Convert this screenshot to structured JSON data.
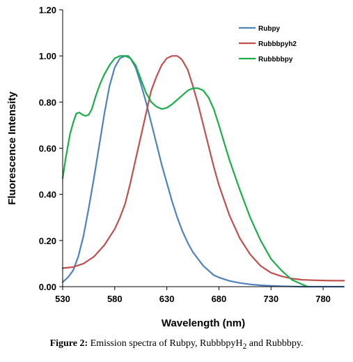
{
  "chart_data": {
    "type": "line",
    "title": "",
    "xlabel": "Wavelength (nm)",
    "ylabel": "Fluorescence Intensity",
    "xlim": [
      530,
      800
    ],
    "ylim": [
      0,
      1.2
    ],
    "xticks": [
      530,
      580,
      630,
      680,
      730,
      780
    ],
    "yticks": [
      0.0,
      0.2,
      0.4,
      0.6,
      0.8,
      1.0,
      1.2
    ],
    "ytick_labels": [
      "0.00",
      "0.20",
      "0.40",
      "0.60",
      "0.80",
      "1.00",
      "1.20"
    ],
    "grid": false,
    "legend_position": "top-right",
    "series": [
      {
        "name": "Rubpy",
        "color": "#4f81bd",
        "x": [
          530,
          535,
          540,
          545,
          550,
          555,
          560,
          565,
          570,
          575,
          580,
          585,
          590,
          593,
          595,
          600,
          605,
          610,
          615,
          620,
          625,
          630,
          635,
          640,
          645,
          650,
          655,
          660,
          665,
          670,
          675,
          680,
          690,
          700,
          710,
          720,
          730,
          740,
          750,
          760,
          770,
          780,
          800
        ],
        "y": [
          0.02,
          0.04,
          0.07,
          0.13,
          0.22,
          0.34,
          0.47,
          0.61,
          0.75,
          0.87,
          0.95,
          0.99,
          1.0,
          1.0,
          0.99,
          0.95,
          0.88,
          0.8,
          0.71,
          0.62,
          0.53,
          0.45,
          0.37,
          0.3,
          0.24,
          0.19,
          0.15,
          0.12,
          0.09,
          0.07,
          0.05,
          0.04,
          0.025,
          0.016,
          0.01,
          0.006,
          0.004,
          0.002,
          0.001,
          0.0,
          0.0,
          0.0,
          0.0
        ]
      },
      {
        "name": "Rubbbpyh2",
        "color": "#c0504d",
        "x": [
          530,
          540,
          550,
          560,
          570,
          580,
          585,
          590,
          595,
          600,
          605,
          610,
          615,
          620,
          625,
          630,
          635,
          640,
          643,
          645,
          650,
          655,
          660,
          665,
          670,
          675,
          680,
          690,
          700,
          710,
          720,
          730,
          740,
          750,
          760,
          770,
          780,
          790,
          800
        ],
        "y": [
          0.08,
          0.085,
          0.1,
          0.13,
          0.18,
          0.25,
          0.3,
          0.36,
          0.45,
          0.55,
          0.65,
          0.75,
          0.85,
          0.91,
          0.96,
          0.99,
          1.0,
          1.0,
          0.99,
          0.98,
          0.94,
          0.87,
          0.79,
          0.7,
          0.61,
          0.52,
          0.44,
          0.31,
          0.21,
          0.14,
          0.09,
          0.06,
          0.045,
          0.035,
          0.03,
          0.028,
          0.027,
          0.026,
          0.026
        ]
      },
      {
        "name": "Rubbbbpy",
        "color": "#1aae4a",
        "x": [
          530,
          533,
          537,
          540,
          543,
          546,
          549,
          552,
          555,
          558,
          562,
          566,
          570,
          575,
          580,
          585,
          590,
          595,
          600,
          605,
          610,
          615,
          620,
          625,
          630,
          635,
          640,
          645,
          650,
          655,
          660,
          665,
          670,
          675,
          680,
          690,
          700,
          710,
          720,
          730,
          740,
          750,
          760,
          765
        ],
        "y": [
          0.47,
          0.56,
          0.66,
          0.71,
          0.75,
          0.755,
          0.745,
          0.74,
          0.745,
          0.77,
          0.83,
          0.88,
          0.92,
          0.96,
          0.99,
          1.0,
          1.0,
          0.99,
          0.96,
          0.9,
          0.84,
          0.8,
          0.78,
          0.77,
          0.775,
          0.79,
          0.81,
          0.83,
          0.85,
          0.86,
          0.86,
          0.85,
          0.82,
          0.77,
          0.7,
          0.55,
          0.42,
          0.3,
          0.2,
          0.12,
          0.07,
          0.03,
          0.01,
          0.0
        ]
      }
    ]
  },
  "caption": {
    "label": "Figure 2:",
    "text": "Emission spectra of Rubpy, RubbbpyH",
    "subscript": "2",
    "tail": " and Rubbbpy."
  }
}
